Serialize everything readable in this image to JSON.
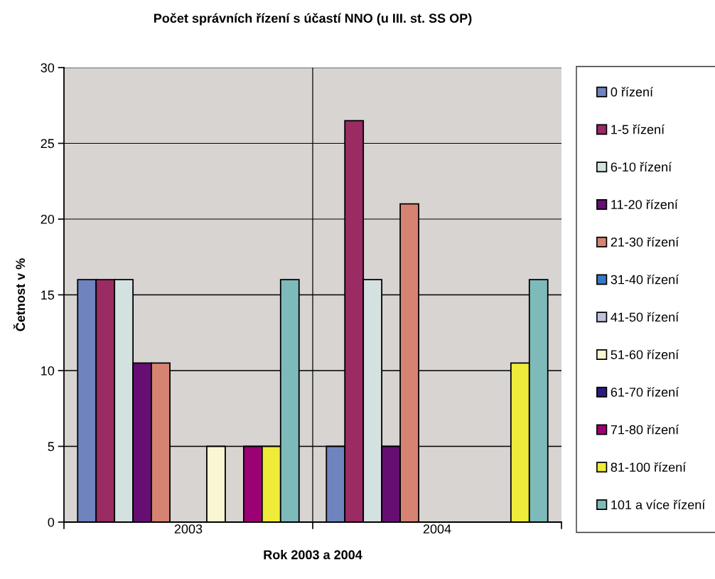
{
  "chart_data": {
    "type": "bar",
    "title": "Počet správních řízení s účastí NNO (u III. st. SS OP)",
    "xlabel": "Rok 2003 a 2004",
    "ylabel": "Četnost v %",
    "categories": [
      "2003",
      "2004"
    ],
    "series": [
      {
        "name": "0 řízení",
        "color": "#6f84bf",
        "values": [
          16,
          5
        ]
      },
      {
        "name": "1-5 řízení",
        "color": "#9a2b63",
        "values": [
          16,
          26.5
        ]
      },
      {
        "name": "6-10 řízení",
        "color": "#d3e1e0",
        "values": [
          16,
          16
        ]
      },
      {
        "name": "11-20 řízení",
        "color": "#670e72",
        "values": [
          10.5,
          5
        ]
      },
      {
        "name": "21-30 řízení",
        "color": "#d78373",
        "values": [
          10.5,
          21
        ]
      },
      {
        "name": "31-40 řízení",
        "color": "#3a78c4",
        "values": [
          null,
          null
        ]
      },
      {
        "name": "41-50 řízení",
        "color": "#c0c0e0",
        "values": [
          null,
          null
        ]
      },
      {
        "name": "51-60 řízení",
        "color": "#faf5d2",
        "values": [
          5,
          null
        ]
      },
      {
        "name": "61-70 řízení",
        "color": "#2f1a7e",
        "values": [
          null,
          null
        ]
      },
      {
        "name": "71-80 řízení",
        "color": "#9c0173",
        "values": [
          5,
          null
        ]
      },
      {
        "name": "81-100 řízení",
        "color": "#eeeb3a",
        "values": [
          5,
          10.5
        ]
      },
      {
        "name": "101 a více řízení",
        "color": "#7fbabb",
        "values": [
          16,
          16
        ]
      }
    ],
    "ylim": [
      0,
      30
    ],
    "yticks": [
      0,
      5,
      10,
      15,
      20,
      25,
      30
    ],
    "grid": true,
    "legend": "right"
  }
}
